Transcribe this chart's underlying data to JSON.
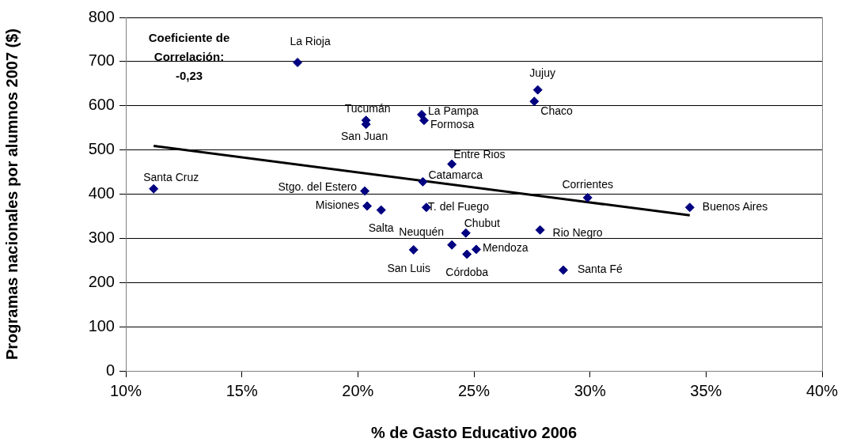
{
  "chart_data": {
    "type": "scatter",
    "xlabel": "% de Gasto Educativo 2006",
    "ylabel": "Programas nacionales por alumnos 2007 ($)",
    "xlim": [
      10,
      40
    ],
    "xticks": [
      {
        "value": 10,
        "label": "10%"
      },
      {
        "value": 15,
        "label": "15%"
      },
      {
        "value": 20,
        "label": "20%"
      },
      {
        "value": 25,
        "label": "25%"
      },
      {
        "value": 30,
        "label": "30%"
      },
      {
        "value": 35,
        "label": "35%"
      },
      {
        "value": 40,
        "label": "40%"
      }
    ],
    "ylim": [
      0,
      800
    ],
    "yticks": [
      0,
      100,
      200,
      300,
      400,
      500,
      600,
      700,
      800
    ],
    "grid": "y",
    "legend": false,
    "marker": "diamond",
    "annotations": [
      "Coeficiente de Correlación: -0,23"
    ],
    "series": [
      {
        "name": "La Rioja",
        "color": "#000080",
        "x": [
          17.4
        ],
        "values": [
          698
        ]
      },
      {
        "name": "Tucumán",
        "color": "#000080",
        "x": [
          20.35
        ],
        "values": [
          567
        ]
      },
      {
        "name": "San Juan",
        "color": "#000080",
        "x": [
          20.35
        ],
        "values": [
          558
        ]
      },
      {
        "name": "Santa Cruz",
        "color": "#000080",
        "x": [
          11.2
        ],
        "values": [
          412
        ]
      },
      {
        "name": "Stgo. del Estero",
        "color": "#000080",
        "x": [
          20.3
        ],
        "values": [
          407
        ]
      },
      {
        "name": "Misiones",
        "color": "#000080",
        "x": [
          20.4
        ],
        "values": [
          373
        ]
      },
      {
        "name": "Salta",
        "color": "#000080",
        "x": [
          21.0
        ],
        "values": [
          364
        ]
      },
      {
        "name": "Neuquén",
        "color": "#000080",
        "x": [
          24.05
        ],
        "values": [
          285
        ]
      },
      {
        "name": "San Luis",
        "color": "#000080",
        "x": [
          22.4
        ],
        "values": [
          274
        ]
      },
      {
        "name": "Catamarca",
        "color": "#000080",
        "x": [
          22.8
        ],
        "values": [
          428
        ]
      },
      {
        "name": "La Pampa",
        "color": "#000080",
        "x": [
          22.75
        ],
        "values": [
          580
        ]
      },
      {
        "name": "Formosa",
        "color": "#000080",
        "x": [
          22.85
        ],
        "values": [
          567
        ]
      },
      {
        "name": "T. del Fuego",
        "color": "#000080",
        "x": [
          22.95
        ],
        "values": [
          370
        ]
      },
      {
        "name": "Entre Rios",
        "color": "#000080",
        "x": [
          24.05
        ],
        "values": [
          468
        ]
      },
      {
        "name": "Chubut",
        "color": "#000080",
        "x": [
          24.65
        ],
        "values": [
          312
        ]
      },
      {
        "name": "Córdoba",
        "color": "#000080",
        "x": [
          24.7
        ],
        "values": [
          264
        ]
      },
      {
        "name": "Mendoza",
        "color": "#000080",
        "x": [
          25.1
        ],
        "values": [
          275
        ]
      },
      {
        "name": "Jujuy",
        "color": "#000080",
        "x": [
          27.75
        ],
        "values": [
          636
        ]
      },
      {
        "name": "Chaco",
        "color": "#000080",
        "x": [
          27.6
        ],
        "values": [
          610
        ]
      },
      {
        "name": "Rio Negro",
        "color": "#000080",
        "x": [
          27.85
        ],
        "values": [
          319
        ]
      },
      {
        "name": "Santa Fé",
        "color": "#000080",
        "x": [
          28.85
        ],
        "values": [
          228
        ]
      },
      {
        "name": "Corrientes",
        "color": "#000080",
        "x": [
          29.9
        ],
        "values": [
          392
        ]
      },
      {
        "name": "Buenos Aires",
        "color": "#000080",
        "x": [
          34.3
        ],
        "values": [
          370
        ]
      },
      {
        "type": "line",
        "color": "#000000",
        "x": [
          11.2,
          34.3
        ],
        "values": [
          509,
          352
        ],
        "marker": "none"
      }
    ]
  }
}
